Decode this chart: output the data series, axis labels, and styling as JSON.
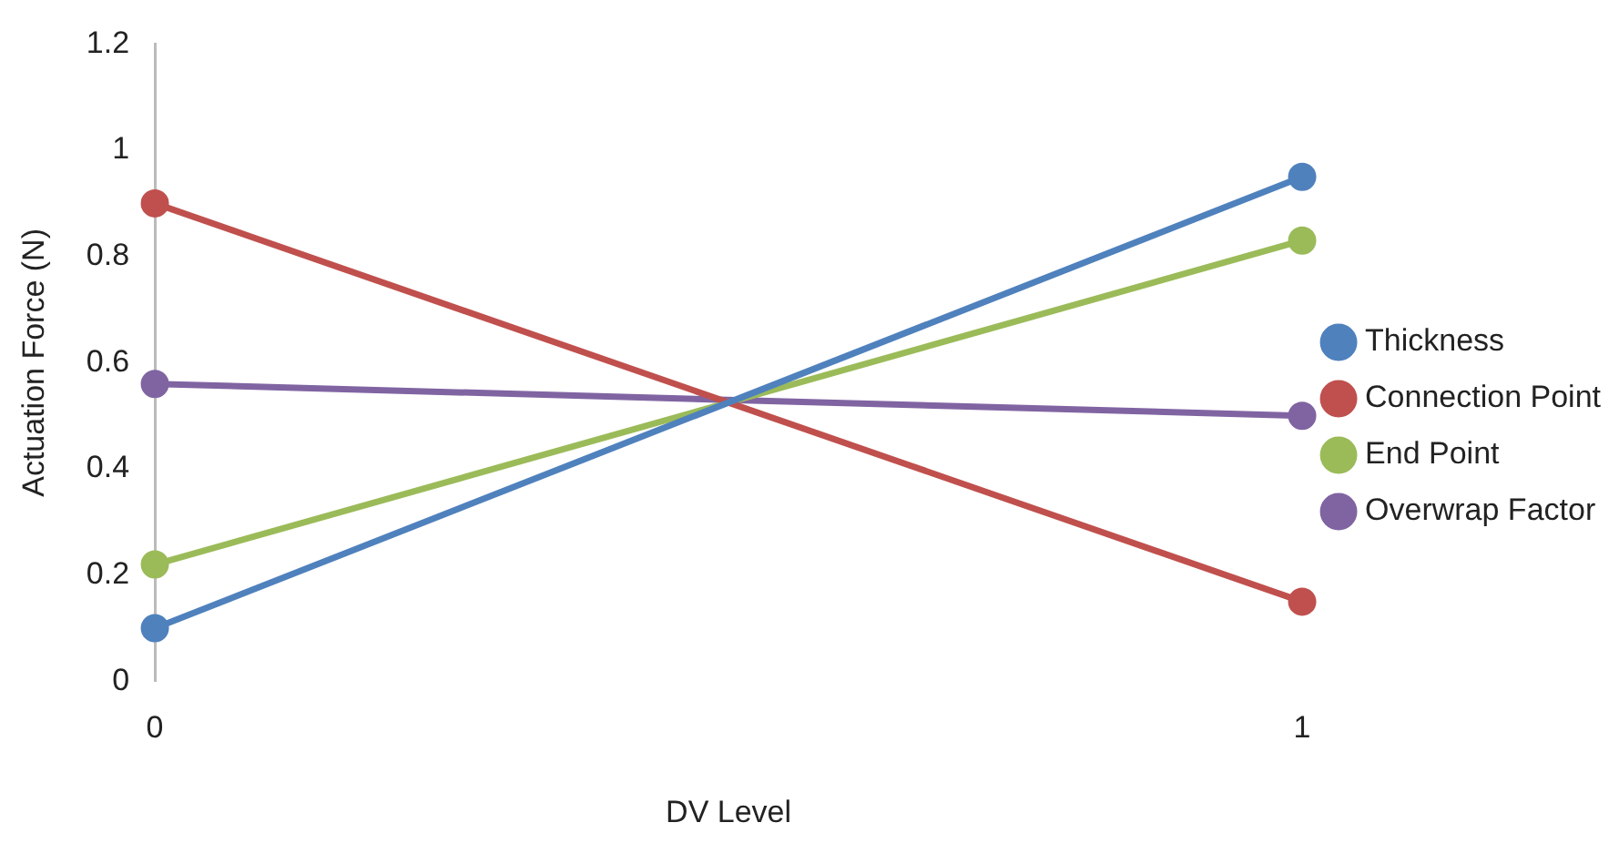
{
  "chart_data": {
    "type": "line",
    "xlabel": "DV Level",
    "ylabel": "Actuation Force (N)",
    "categories": [
      "0",
      "1"
    ],
    "series": [
      {
        "name": "Thickness",
        "color": "#4f81bd",
        "values": [
          0.1,
          0.95
        ]
      },
      {
        "name": "Connection Point",
        "color": "#c0504d",
        "values": [
          0.9,
          0.15
        ]
      },
      {
        "name": "End Point",
        "color": "#9bbb59",
        "values": [
          0.22,
          0.83
        ]
      },
      {
        "name": "Overwrap Factor",
        "color": "#8064a2",
        "values": [
          0.56,
          0.5
        ]
      }
    ],
    "ylim": [
      0,
      1.2
    ],
    "yticks": [
      0,
      0.2,
      0.4,
      0.6,
      0.8,
      1,
      1.2
    ],
    "grid": false,
    "legend": "right",
    "marker": "circle",
    "line_style": "solid"
  }
}
